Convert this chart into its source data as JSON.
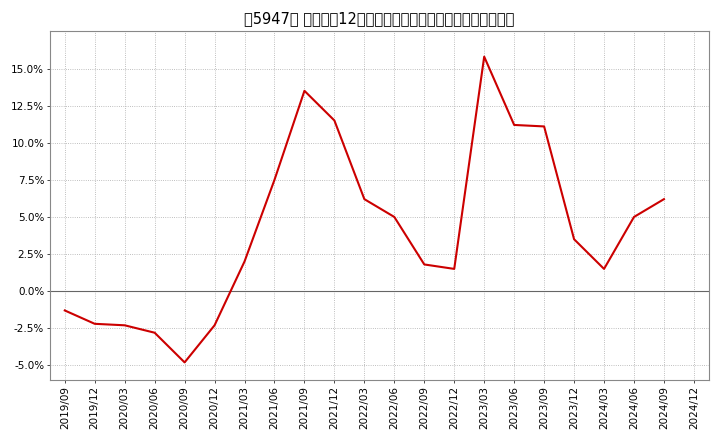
{
  "title": "［5947］ 売上高の12か月移動合計の対前年同期増減率の推移",
  "dates": [
    "2019/09",
    "2019/12",
    "2020/03",
    "2020/06",
    "2020/09",
    "2020/12",
    "2021/03",
    "2021/06",
    "2021/09",
    "2021/12",
    "2022/03",
    "2022/06",
    "2022/09",
    "2022/12",
    "2023/03",
    "2023/06",
    "2023/09",
    "2023/12",
    "2024/03",
    "2024/06",
    "2024/09",
    "2024/12"
  ],
  "values": [
    -1.3,
    -2.2,
    -2.3,
    -2.8,
    -4.8,
    -2.3,
    2.0,
    7.5,
    13.5,
    11.5,
    6.2,
    5.0,
    1.8,
    1.5,
    15.8,
    11.2,
    11.1,
    3.5,
    1.5,
    5.0,
    6.2,
    null
  ],
  "line_color": "#cc0000",
  "background_color": "#ffffff",
  "grid_color": "#aaaaaa",
  "ylim": [
    -6.0,
    17.5
  ],
  "yticks": [
    -5.0,
    -2.5,
    0.0,
    2.5,
    5.0,
    7.5,
    10.0,
    12.5,
    15.0
  ],
  "title_fontsize": 10.5,
  "axis_fontsize": 7.5
}
